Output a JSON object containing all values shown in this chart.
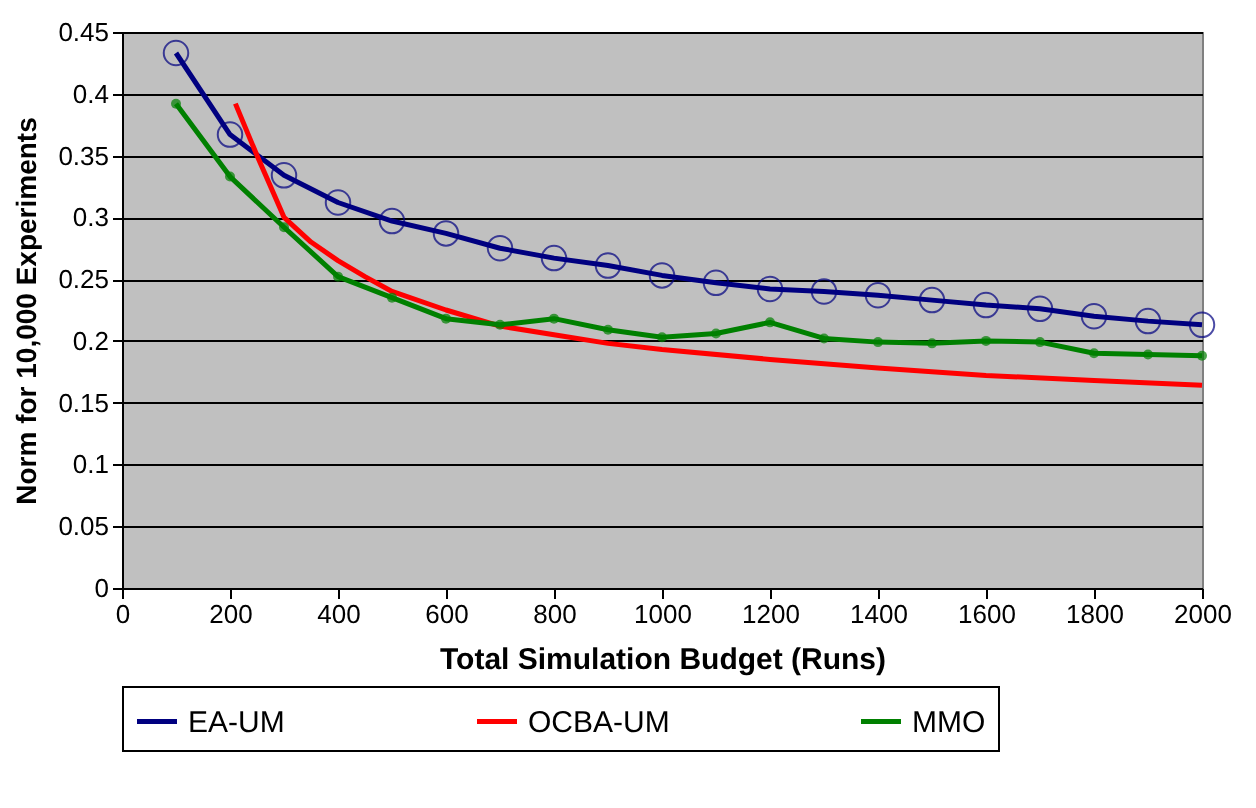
{
  "chart_data": {
    "type": "line",
    "xlabel": "Total Simulation Budget (Runs)",
    "ylabel": "Norm for 10,000 Experiments",
    "xlim": [
      0,
      2000
    ],
    "xticks": [
      0,
      200,
      400,
      600,
      800,
      1000,
      1200,
      1400,
      1600,
      1800,
      2000
    ],
    "ylim": [
      0,
      0.45
    ],
    "yticks": [
      0,
      0.05,
      0.1,
      0.15,
      0.2,
      0.25,
      0.3,
      0.35,
      0.4,
      0.45
    ],
    "grid": "y",
    "legend": "bottom",
    "series": [
      {
        "name": "EA-UM",
        "color": "#000080",
        "marker": "circle",
        "x": [
          100,
          200,
          300,
          400,
          500,
          600,
          700,
          800,
          900,
          1000,
          1100,
          1200,
          1300,
          1400,
          1500,
          1600,
          1700,
          1800,
          1900,
          2000
        ],
        "values": [
          0.433,
          0.367,
          0.334,
          0.312,
          0.297,
          0.287,
          0.275,
          0.267,
          0.261,
          0.253,
          0.247,
          0.242,
          0.24,
          0.237,
          0.233,
          0.229,
          0.226,
          0.22,
          0.216,
          0.213
        ]
      },
      {
        "name": "OCBA-UM",
        "color": "#ff0000",
        "marker": "none",
        "x": [
          210,
          250,
          280,
          300,
          350,
          400,
          450,
          500,
          600,
          700,
          800,
          900,
          1000,
          1200,
          1400,
          1600,
          1800,
          2000
        ],
        "values": [
          0.392,
          0.35,
          0.32,
          0.3,
          0.28,
          0.265,
          0.252,
          0.24,
          0.225,
          0.212,
          0.205,
          0.198,
          0.193,
          0.185,
          0.178,
          0.172,
          0.168,
          0.164
        ]
      },
      {
        "name": "MMO",
        "color": "#008000",
        "marker": "circle",
        "x": [
          100,
          200,
          300,
          400,
          500,
          600,
          700,
          800,
          900,
          1000,
          1100,
          1200,
          1300,
          1400,
          1500,
          1600,
          1700,
          1800,
          1900,
          2000
        ],
        "values": [
          0.392,
          0.333,
          0.292,
          0.252,
          0.235,
          0.218,
          0.213,
          0.218,
          0.209,
          0.203,
          0.206,
          0.215,
          0.202,
          0.199,
          0.198,
          0.2,
          0.199,
          0.19,
          0.189,
          0.188
        ]
      }
    ]
  }
}
